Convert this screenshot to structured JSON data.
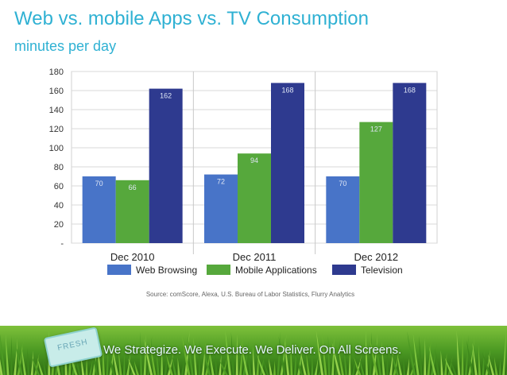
{
  "header": {
    "title": "Web vs. mobile Apps vs. TV Consumption",
    "subtitle": "minutes per day"
  },
  "chart_data": {
    "type": "bar",
    "title": "",
    "xlabel": "",
    "ylabel": "",
    "categories": [
      "Dec 2010",
      "Dec 2011",
      "Dec 2012"
    ],
    "series": [
      {
        "name": "Web Browsing",
        "values": [
          70,
          72,
          70
        ],
        "color": "#4874c8"
      },
      {
        "name": "Mobile Applications",
        "values": [
          66,
          94,
          127
        ],
        "color": "#56a83c"
      },
      {
        "name": "Television",
        "values": [
          162,
          168,
          168
        ],
        "color": "#2e3a8f"
      }
    ],
    "yticks": [
      "-",
      "20",
      "40",
      "60",
      "80",
      "100",
      "120",
      "140",
      "160",
      "180"
    ],
    "ylim": [
      0,
      180
    ],
    "grid": true,
    "legend": "bottom",
    "source": "Source: comScore, Alexa, U.S. Bureau of Labor Statistics, Flurry Analytics"
  },
  "footer": {
    "badge": "FRESH",
    "tagline": "We Strategize. We Execute. We Deliver. On All Screens."
  },
  "colors": {
    "title": "#2fb1d3",
    "grass": "#4c9a23"
  }
}
